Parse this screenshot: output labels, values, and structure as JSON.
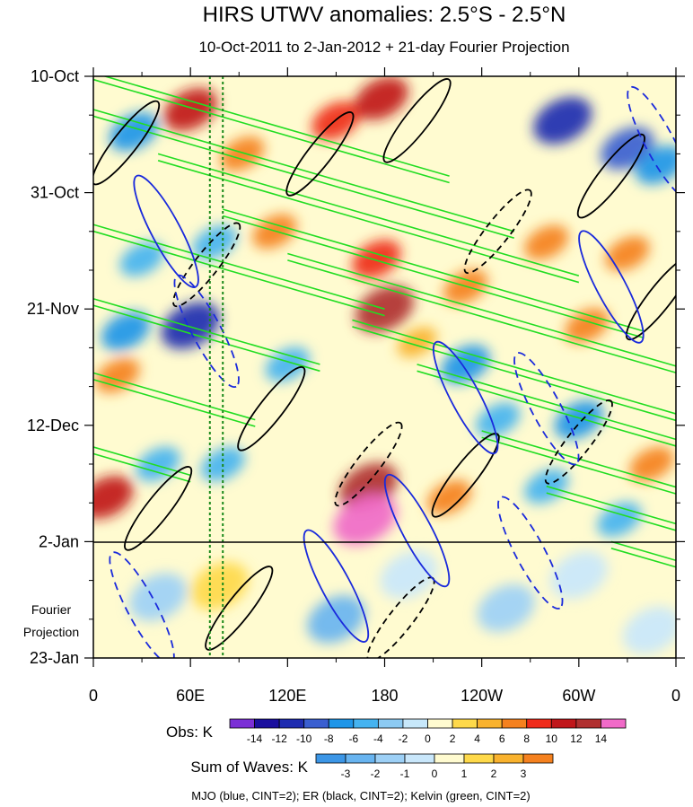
{
  "chart_data": {
    "type": "heatmap",
    "title": "HIRS UTWV anomalies: 2.5°S - 2.5°N",
    "subtitle": "10-Oct-2011 to 2-Jan-2012 + 21-day Fourier Projection",
    "x_ticks": [
      "0",
      "60E",
      "120E",
      "180",
      "120W",
      "60W",
      "0"
    ],
    "x_tick_lon": [
      0,
      60,
      120,
      180,
      240,
      300,
      360
    ],
    "y_ticks": [
      "10-Oct",
      "31-Oct",
      "21-Nov",
      "12-Dec",
      "2-Jan",
      "23-Jan"
    ],
    "y_tick_day": [
      0,
      21,
      42,
      63,
      84,
      105
    ],
    "projection_label": [
      "Fourier",
      "Projection"
    ],
    "projection_start_day": 84,
    "reference_lines_lon": [
      72,
      80
    ],
    "obs_colorbar": {
      "label": "Obs: K",
      "ticks": [
        "-14",
        "-12",
        "-10",
        "-8",
        "-6",
        "-4",
        "-2",
        "0",
        "2",
        "4",
        "6",
        "8",
        "10",
        "12",
        "14"
      ],
      "colors": [
        "#7b2fd6",
        "#1a0f9e",
        "#1e2cb0",
        "#3a5fd0",
        "#1f96e8",
        "#45b3f0",
        "#8ccaf2",
        "#c7e8fa",
        "#fffbd0",
        "#fed94a",
        "#f9b22e",
        "#f5811f",
        "#ef2b1a",
        "#c0161a",
        "#b03030",
        "#f06ac8"
      ]
    },
    "waves_colorbar": {
      "label": "Sum of Waves: K",
      "ticks": [
        "-3",
        "-2",
        "-1",
        "0",
        "1",
        "2",
        "3"
      ],
      "colors": [
        "#3c96e6",
        "#68b4f0",
        "#9dd0f6",
        "#c9e7fb",
        "#fffbd0",
        "#fed94a",
        "#f9b22e",
        "#f5811f"
      ]
    },
    "legend_note": "MJO (blue, CINT=2); ER (black, CINT=2); Kelvin (green, CINT=2)",
    "series": [
      {
        "name": "MJO",
        "color": "#1a2adc",
        "contour_interval": 2
      },
      {
        "name": "ER",
        "color": "#000000",
        "contour_interval": 2
      },
      {
        "name": "Kelvin",
        "color": "#22dd22",
        "contour_interval": 2
      }
    ],
    "anomaly_features": [
      {
        "lon": 60,
        "day": 6,
        "value": 10
      },
      {
        "lon": 25,
        "day": 10,
        "value": -8
      },
      {
        "lon": 92,
        "day": 14,
        "value": 6
      },
      {
        "lon": 150,
        "day": 8,
        "value": 8
      },
      {
        "lon": 178,
        "day": 4,
        "value": 10
      },
      {
        "lon": 290,
        "day": 8,
        "value": -12
      },
      {
        "lon": 330,
        "day": 13,
        "value": -10
      },
      {
        "lon": 350,
        "day": 16,
        "value": -8
      },
      {
        "lon": 30,
        "day": 33,
        "value": -6
      },
      {
        "lon": 75,
        "day": 30,
        "value": -6
      },
      {
        "lon": 112,
        "day": 28,
        "value": 6
      },
      {
        "lon": 180,
        "day": 42,
        "value": 12
      },
      {
        "lon": 175,
        "day": 33,
        "value": 8
      },
      {
        "lon": 230,
        "day": 38,
        "value": 6
      },
      {
        "lon": 280,
        "day": 30,
        "value": 6
      },
      {
        "lon": 330,
        "day": 32,
        "value": 6
      },
      {
        "lon": 60,
        "day": 45,
        "value": -12
      },
      {
        "lon": 20,
        "day": 46,
        "value": -8
      },
      {
        "lon": 120,
        "day": 52,
        "value": -6
      },
      {
        "lon": 230,
        "day": 52,
        "value": -8
      },
      {
        "lon": 200,
        "day": 48,
        "value": 4
      },
      {
        "lon": 305,
        "day": 45,
        "value": 6
      },
      {
        "lon": 15,
        "day": 54,
        "value": 6
      },
      {
        "lon": 250,
        "day": 62,
        "value": -6
      },
      {
        "lon": 300,
        "day": 62,
        "value": -8
      },
      {
        "lon": 40,
        "day": 70,
        "value": -6
      },
      {
        "lon": 80,
        "day": 70,
        "value": -6
      },
      {
        "lon": 170,
        "day": 74,
        "value": 12
      },
      {
        "lon": 168,
        "day": 80,
        "value": 14
      },
      {
        "lon": 8,
        "day": 76,
        "value": 10
      },
      {
        "lon": 220,
        "day": 76,
        "value": 6
      },
      {
        "lon": 280,
        "day": 74,
        "value": -6
      },
      {
        "lon": 345,
        "day": 70,
        "value": 6
      },
      {
        "lon": 325,
        "day": 80,
        "value": -6
      },
      {
        "lon": 40,
        "day": 94,
        "value": -2
      },
      {
        "lon": 78,
        "day": 92,
        "value": 1
      },
      {
        "lon": 150,
        "day": 98,
        "value": -3
      },
      {
        "lon": 195,
        "day": 90,
        "value": -1
      },
      {
        "lon": 255,
        "day": 96,
        "value": -2
      },
      {
        "lon": 300,
        "day": 90,
        "value": -1
      },
      {
        "lon": 345,
        "day": 100,
        "value": -1
      }
    ]
  }
}
